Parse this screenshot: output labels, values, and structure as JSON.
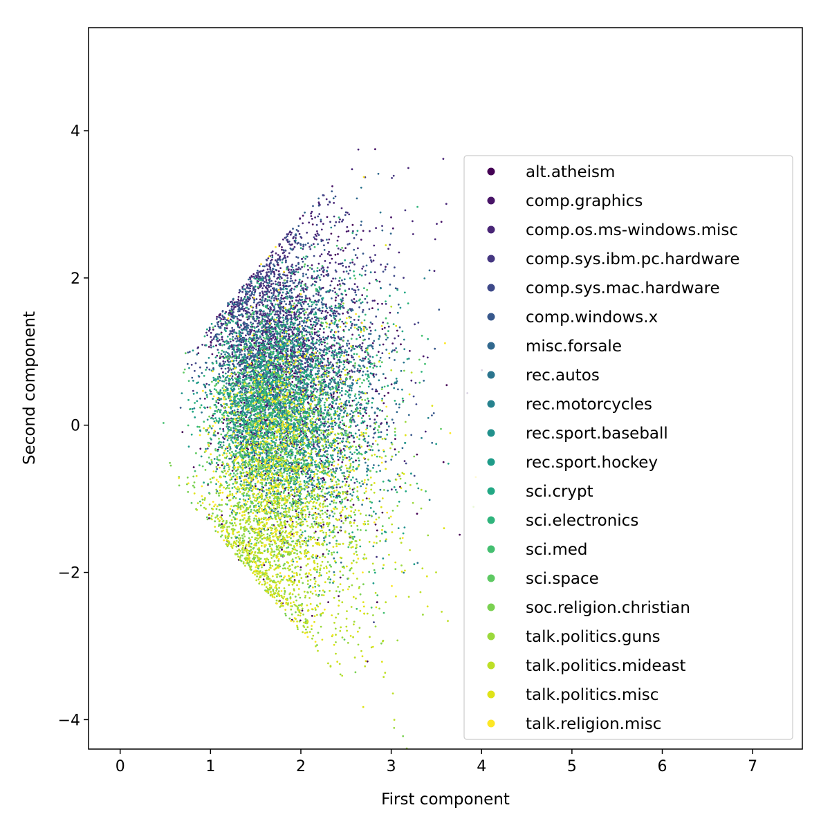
{
  "chart_data": {
    "type": "scatter",
    "title": "",
    "xlabel": "First component",
    "ylabel": "Second component",
    "xlim": [
      -0.35,
      7.55
    ],
    "ylim": [
      -4.4,
      5.4
    ],
    "xticks": [
      0,
      1,
      2,
      3,
      4,
      5,
      6,
      7
    ],
    "yticks": [
      -4,
      -2,
      0,
      2,
      4
    ],
    "xtick_labels": [
      "0",
      "1",
      "2",
      "3",
      "4",
      "5",
      "6",
      "7"
    ],
    "ytick_labels": [
      "−4",
      "−2",
      "0",
      "2",
      "4"
    ],
    "grid": false,
    "legend_position": "right",
    "approx_total_points": 11000,
    "series": [
      {
        "name": "alt.atheism",
        "color": "#440154",
        "center": [
          1.75,
          0.0
        ],
        "spread": [
          0.45,
          1.0
        ]
      },
      {
        "name": "comp.graphics",
        "color": "#481467",
        "center": [
          1.75,
          1.15
        ],
        "spread": [
          0.45,
          0.75
        ]
      },
      {
        "name": "comp.os.ms-windows.misc",
        "color": "#482576",
        "center": [
          1.8,
          1.35
        ],
        "spread": [
          0.5,
          0.9
        ]
      },
      {
        "name": "comp.sys.ibm.pc.hardware",
        "color": "#453781",
        "center": [
          1.75,
          1.25
        ],
        "spread": [
          0.45,
          0.8
        ]
      },
      {
        "name": "comp.sys.mac.hardware",
        "color": "#3e4989",
        "center": [
          1.75,
          1.15
        ],
        "spread": [
          0.45,
          0.8
        ]
      },
      {
        "name": "comp.windows.x",
        "color": "#38588c",
        "center": [
          1.75,
          1.1
        ],
        "spread": [
          0.45,
          0.8
        ]
      },
      {
        "name": "misc.forsale",
        "color": "#31688e",
        "center": [
          1.8,
          0.7
        ],
        "spread": [
          0.5,
          0.8
        ]
      },
      {
        "name": "rec.autos",
        "color": "#2b758e",
        "center": [
          1.75,
          0.3
        ],
        "spread": [
          0.45,
          0.75
        ]
      },
      {
        "name": "rec.motorcycles",
        "color": "#26828e",
        "center": [
          1.75,
          0.25
        ],
        "spread": [
          0.45,
          0.75
        ]
      },
      {
        "name": "rec.sport.baseball",
        "color": "#21918c",
        "center": [
          1.7,
          0.2
        ],
        "spread": [
          0.45,
          0.75
        ]
      },
      {
        "name": "rec.sport.hockey",
        "color": "#1e9c89",
        "center": [
          1.7,
          0.2
        ],
        "spread": [
          0.45,
          0.75
        ]
      },
      {
        "name": "sci.crypt",
        "color": "#22a884",
        "center": [
          1.75,
          0.2
        ],
        "spread": [
          0.45,
          0.8
        ]
      },
      {
        "name": "sci.electronics",
        "color": "#2fb47c",
        "center": [
          1.75,
          0.4
        ],
        "spread": [
          0.45,
          0.8
        ]
      },
      {
        "name": "sci.med",
        "color": "#44bf70",
        "center": [
          1.7,
          0.0
        ],
        "spread": [
          0.45,
          0.8
        ]
      },
      {
        "name": "sci.space",
        "color": "#5ec962",
        "center": [
          1.7,
          0.0
        ],
        "spread": [
          0.45,
          0.8
        ]
      },
      {
        "name": "soc.religion.christian",
        "color": "#7ad151",
        "center": [
          1.6,
          -1.0
        ],
        "spread": [
          0.45,
          0.9
        ]
      },
      {
        "name": "talk.politics.guns",
        "color": "#9bd93c",
        "center": [
          1.75,
          -1.2
        ],
        "spread": [
          0.5,
          0.9
        ]
      },
      {
        "name": "talk.politics.mideast",
        "color": "#bddf26",
        "center": [
          1.8,
          -1.5
        ],
        "spread": [
          0.5,
          0.9
        ]
      },
      {
        "name": "talk.politics.misc",
        "color": "#dfe318",
        "center": [
          1.8,
          -1.2
        ],
        "spread": [
          0.5,
          0.9
        ]
      },
      {
        "name": "talk.religion.misc",
        "color": "#fde725",
        "center": [
          1.65,
          -0.4
        ],
        "spread": [
          0.45,
          1.0
        ]
      }
    ]
  }
}
